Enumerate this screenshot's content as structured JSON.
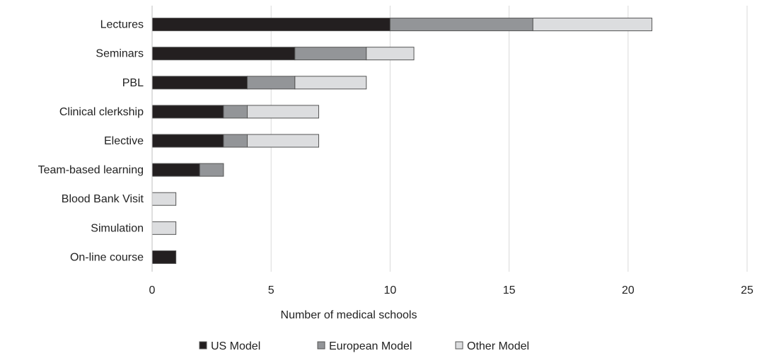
{
  "chart_data": {
    "type": "bar",
    "orientation": "horizontal",
    "stacked": true,
    "title": "",
    "xlabel": "Number of medical schools",
    "ylabel": "",
    "xlim": [
      0,
      25
    ],
    "xticks": [
      "0",
      "5",
      "10",
      "15",
      "20",
      "25"
    ],
    "grid": "vertical",
    "legend_position": "bottom",
    "categories": [
      "Lectures",
      "Seminars",
      "PBL",
      "Clinical clerkship",
      "Elective",
      "Team-based learning",
      "Blood Bank Visit",
      "Simulation",
      "On-line course"
    ],
    "series": [
      {
        "name": "US Model",
        "color": "#231f20",
        "values": [
          10,
          6,
          4,
          3,
          3,
          2,
          0,
          0,
          1
        ]
      },
      {
        "name": "European Model",
        "color": "#939598",
        "values": [
          6,
          3,
          2,
          1,
          1,
          1,
          0,
          0,
          0
        ]
      },
      {
        "name": "Other Model",
        "color": "#dcdddf",
        "values": [
          5,
          2,
          3,
          3,
          3,
          0,
          1,
          1,
          0
        ]
      }
    ]
  }
}
